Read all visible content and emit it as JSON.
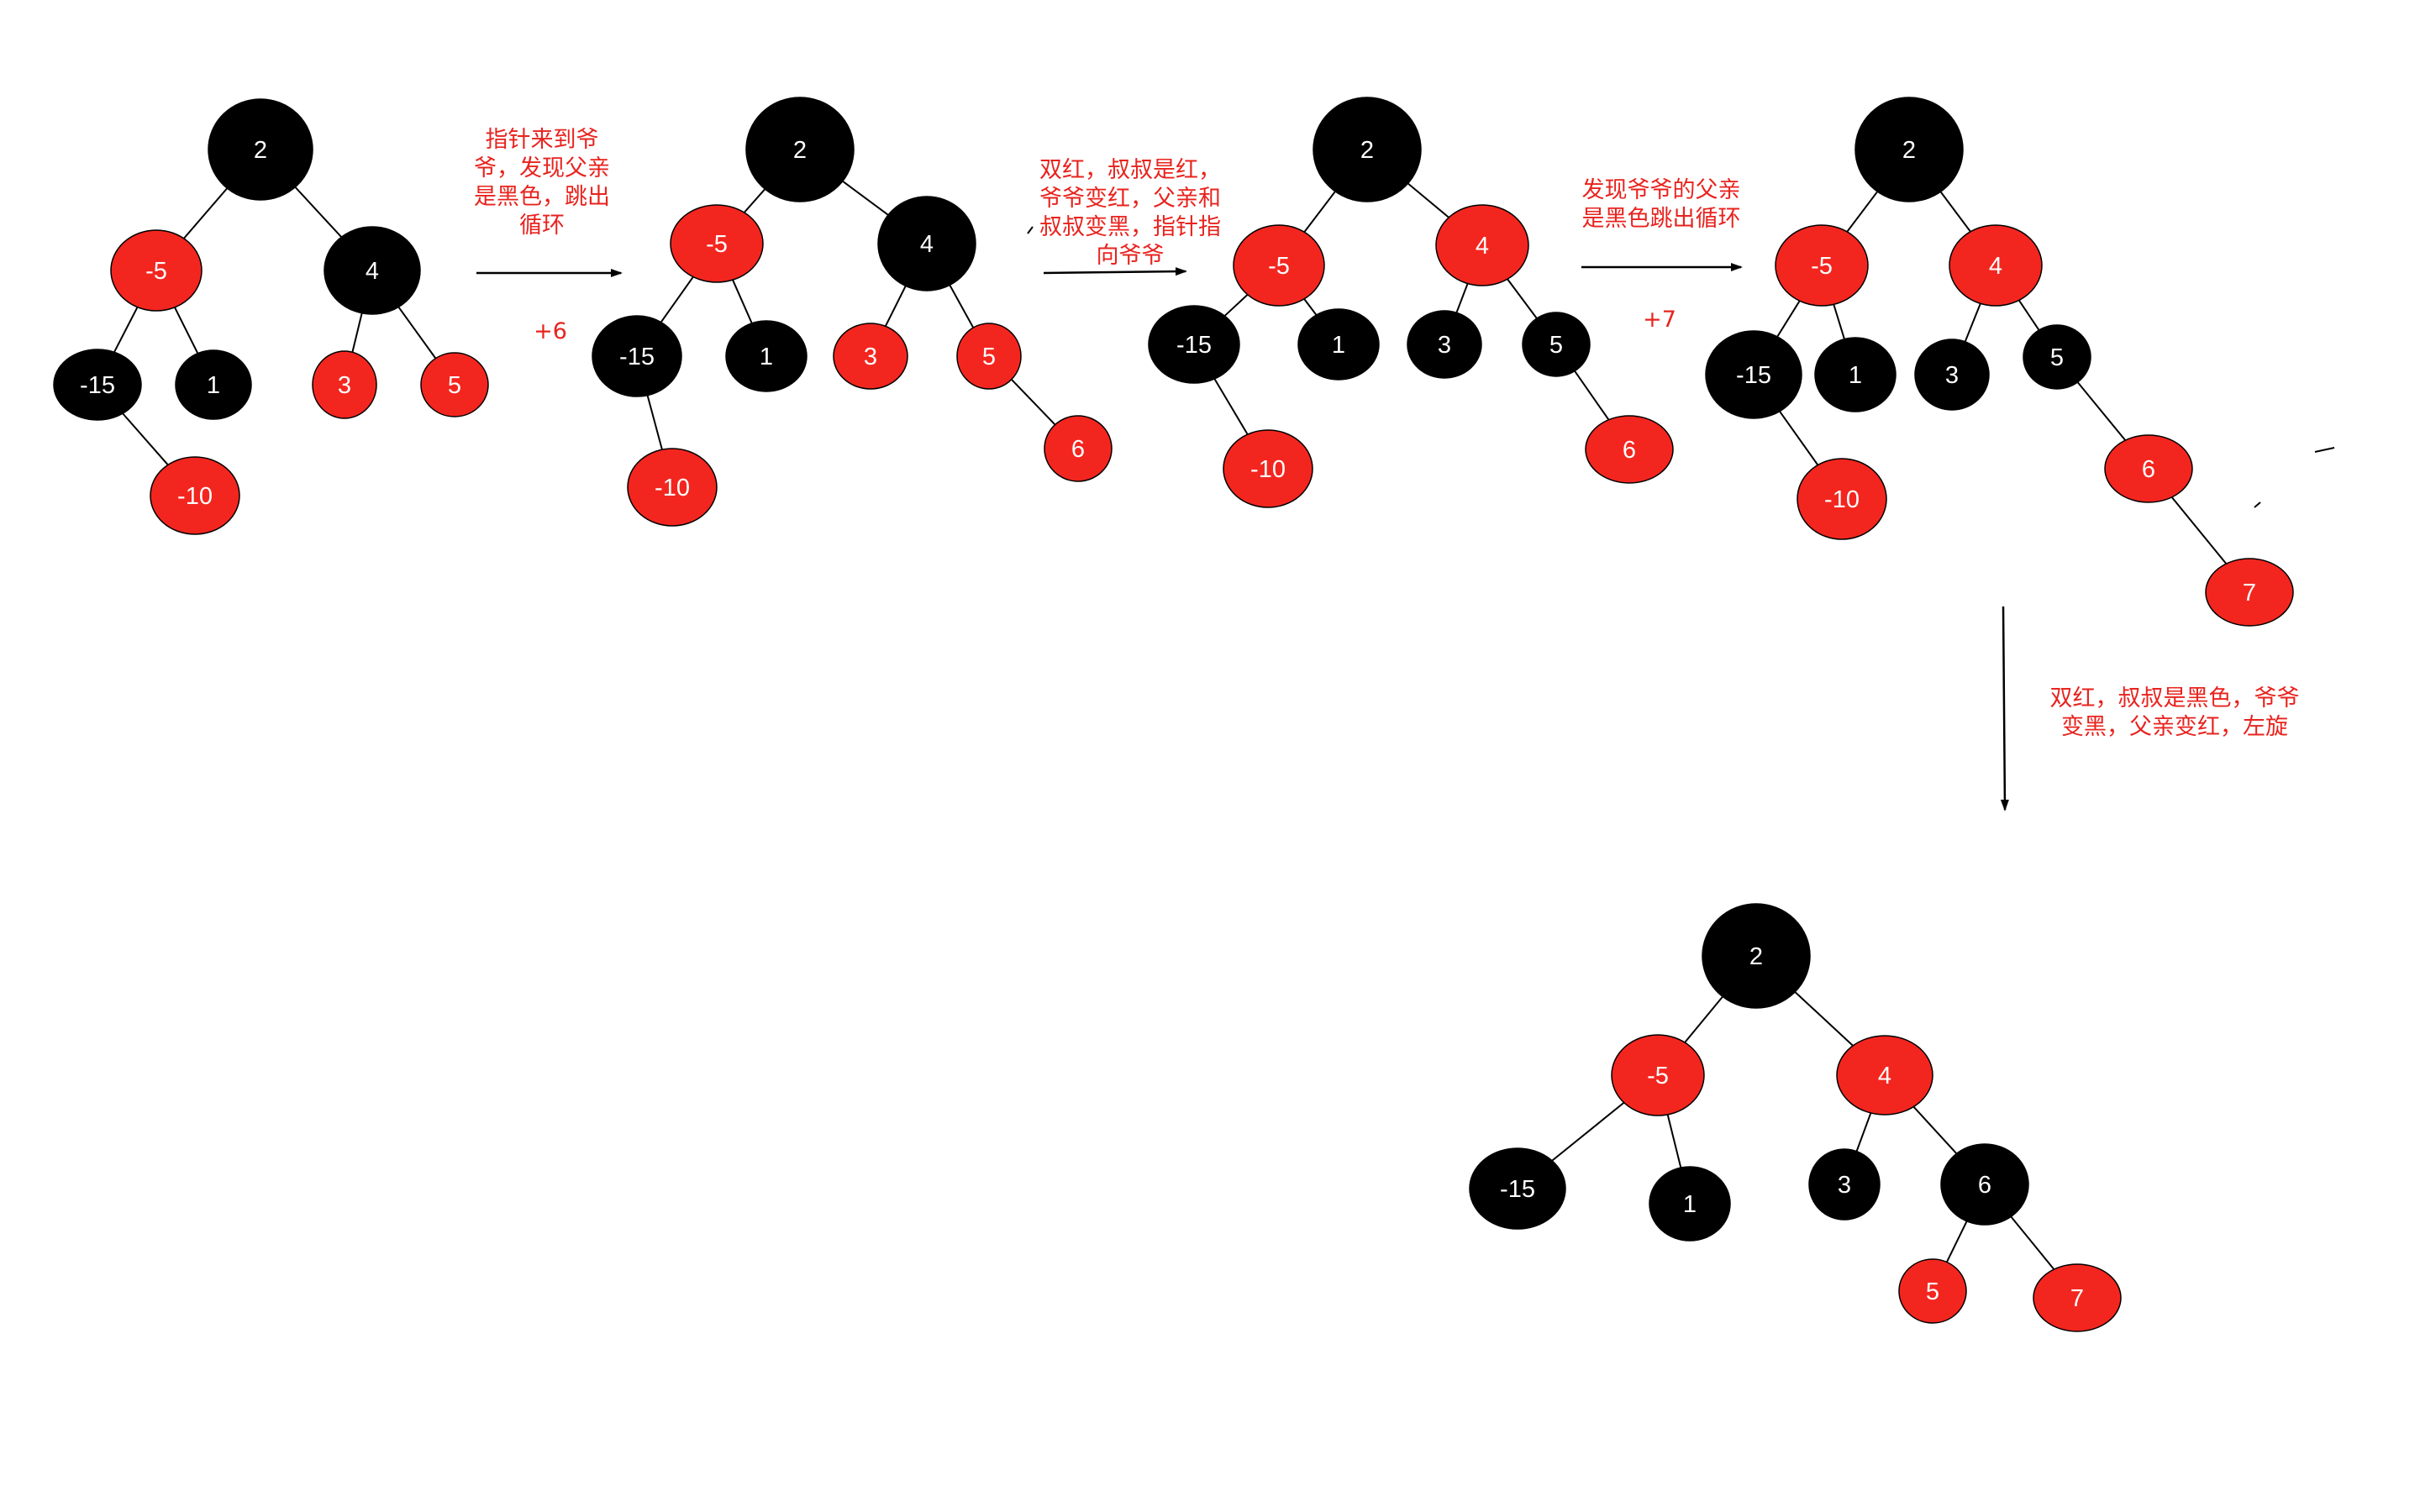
{
  "colors": {
    "red": "#f3261f",
    "black": "#000000",
    "edge": "#000000",
    "note": "#e8231e"
  },
  "trees": [
    {
      "id": "tree-1",
      "nodes": [
        {
          "key": "n2",
          "label": "2",
          "color": "black"
        },
        {
          "key": "n-5",
          "label": "-5",
          "color": "red"
        },
        {
          "key": "n4",
          "label": "4",
          "color": "black"
        },
        {
          "key": "n-15",
          "label": "-15",
          "color": "black"
        },
        {
          "key": "n1",
          "label": "1",
          "color": "black"
        },
        {
          "key": "n3",
          "label": "3",
          "color": "red"
        },
        {
          "key": "n5",
          "label": "5",
          "color": "red"
        },
        {
          "key": "n-10",
          "label": "-10",
          "color": "red"
        }
      ]
    },
    {
      "id": "tree-2",
      "nodes": [
        {
          "key": "n2",
          "label": "2",
          "color": "black"
        },
        {
          "key": "n-5",
          "label": "-5",
          "color": "red"
        },
        {
          "key": "n4",
          "label": "4",
          "color": "black"
        },
        {
          "key": "n-15",
          "label": "-15",
          "color": "black"
        },
        {
          "key": "n1",
          "label": "1",
          "color": "black"
        },
        {
          "key": "n3",
          "label": "3",
          "color": "red"
        },
        {
          "key": "n5",
          "label": "5",
          "color": "red"
        },
        {
          "key": "n-10",
          "label": "-10",
          "color": "red"
        },
        {
          "key": "n6",
          "label": "6",
          "color": "red"
        }
      ]
    },
    {
      "id": "tree-3",
      "nodes": [
        {
          "key": "n2",
          "label": "2",
          "color": "black"
        },
        {
          "key": "n-5",
          "label": "-5",
          "color": "red"
        },
        {
          "key": "n4",
          "label": "4",
          "color": "red"
        },
        {
          "key": "n-15",
          "label": "-15",
          "color": "black"
        },
        {
          "key": "n1",
          "label": "1",
          "color": "black"
        },
        {
          "key": "n3",
          "label": "3",
          "color": "black"
        },
        {
          "key": "n5",
          "label": "5",
          "color": "black"
        },
        {
          "key": "n-10",
          "label": "-10",
          "color": "red"
        },
        {
          "key": "n6",
          "label": "6",
          "color": "red"
        }
      ]
    },
    {
      "id": "tree-4",
      "nodes": [
        {
          "key": "n2",
          "label": "2",
          "color": "black"
        },
        {
          "key": "n-5",
          "label": "-5",
          "color": "red"
        },
        {
          "key": "n4",
          "label": "4",
          "color": "red"
        },
        {
          "key": "n-15",
          "label": "-15",
          "color": "black"
        },
        {
          "key": "n1",
          "label": "1",
          "color": "black"
        },
        {
          "key": "n3",
          "label": "3",
          "color": "black"
        },
        {
          "key": "n5",
          "label": "5",
          "color": "black"
        },
        {
          "key": "n-10",
          "label": "-10",
          "color": "red"
        },
        {
          "key": "n6",
          "label": "6",
          "color": "red"
        },
        {
          "key": "n7",
          "label": "7",
          "color": "red"
        }
      ]
    },
    {
      "id": "tree-5",
      "nodes": [
        {
          "key": "n2",
          "label": "2",
          "color": "black"
        },
        {
          "key": "n-5",
          "label": "-5",
          "color": "red"
        },
        {
          "key": "n4",
          "label": "4",
          "color": "red"
        },
        {
          "key": "n-15",
          "label": "-15",
          "color": "black"
        },
        {
          "key": "n1",
          "label": "1",
          "color": "black"
        },
        {
          "key": "n3",
          "label": "3",
          "color": "black"
        },
        {
          "key": "n6",
          "label": "6",
          "color": "black"
        },
        {
          "key": "n5",
          "label": "5",
          "color": "red"
        },
        {
          "key": "n7",
          "label": "7",
          "color": "red"
        }
      ]
    }
  ],
  "notes": {
    "step1": [
      "指针来到爷",
      "爷，发现父亲",
      "是黑色，跳出",
      "循环"
    ],
    "insert6": "+6",
    "step2": [
      "双红，叔叔是红，",
      "爷爷变红，父亲和",
      "叔叔变黑，指针指",
      "向爷爷"
    ],
    "step3": [
      "发现爷爷的父亲",
      "是黑色跳出循环"
    ],
    "insert7": "+7",
    "step4": [
      "双红，叔叔是黑色，爷爷",
      "变黑，父亲变红，左旋"
    ]
  }
}
